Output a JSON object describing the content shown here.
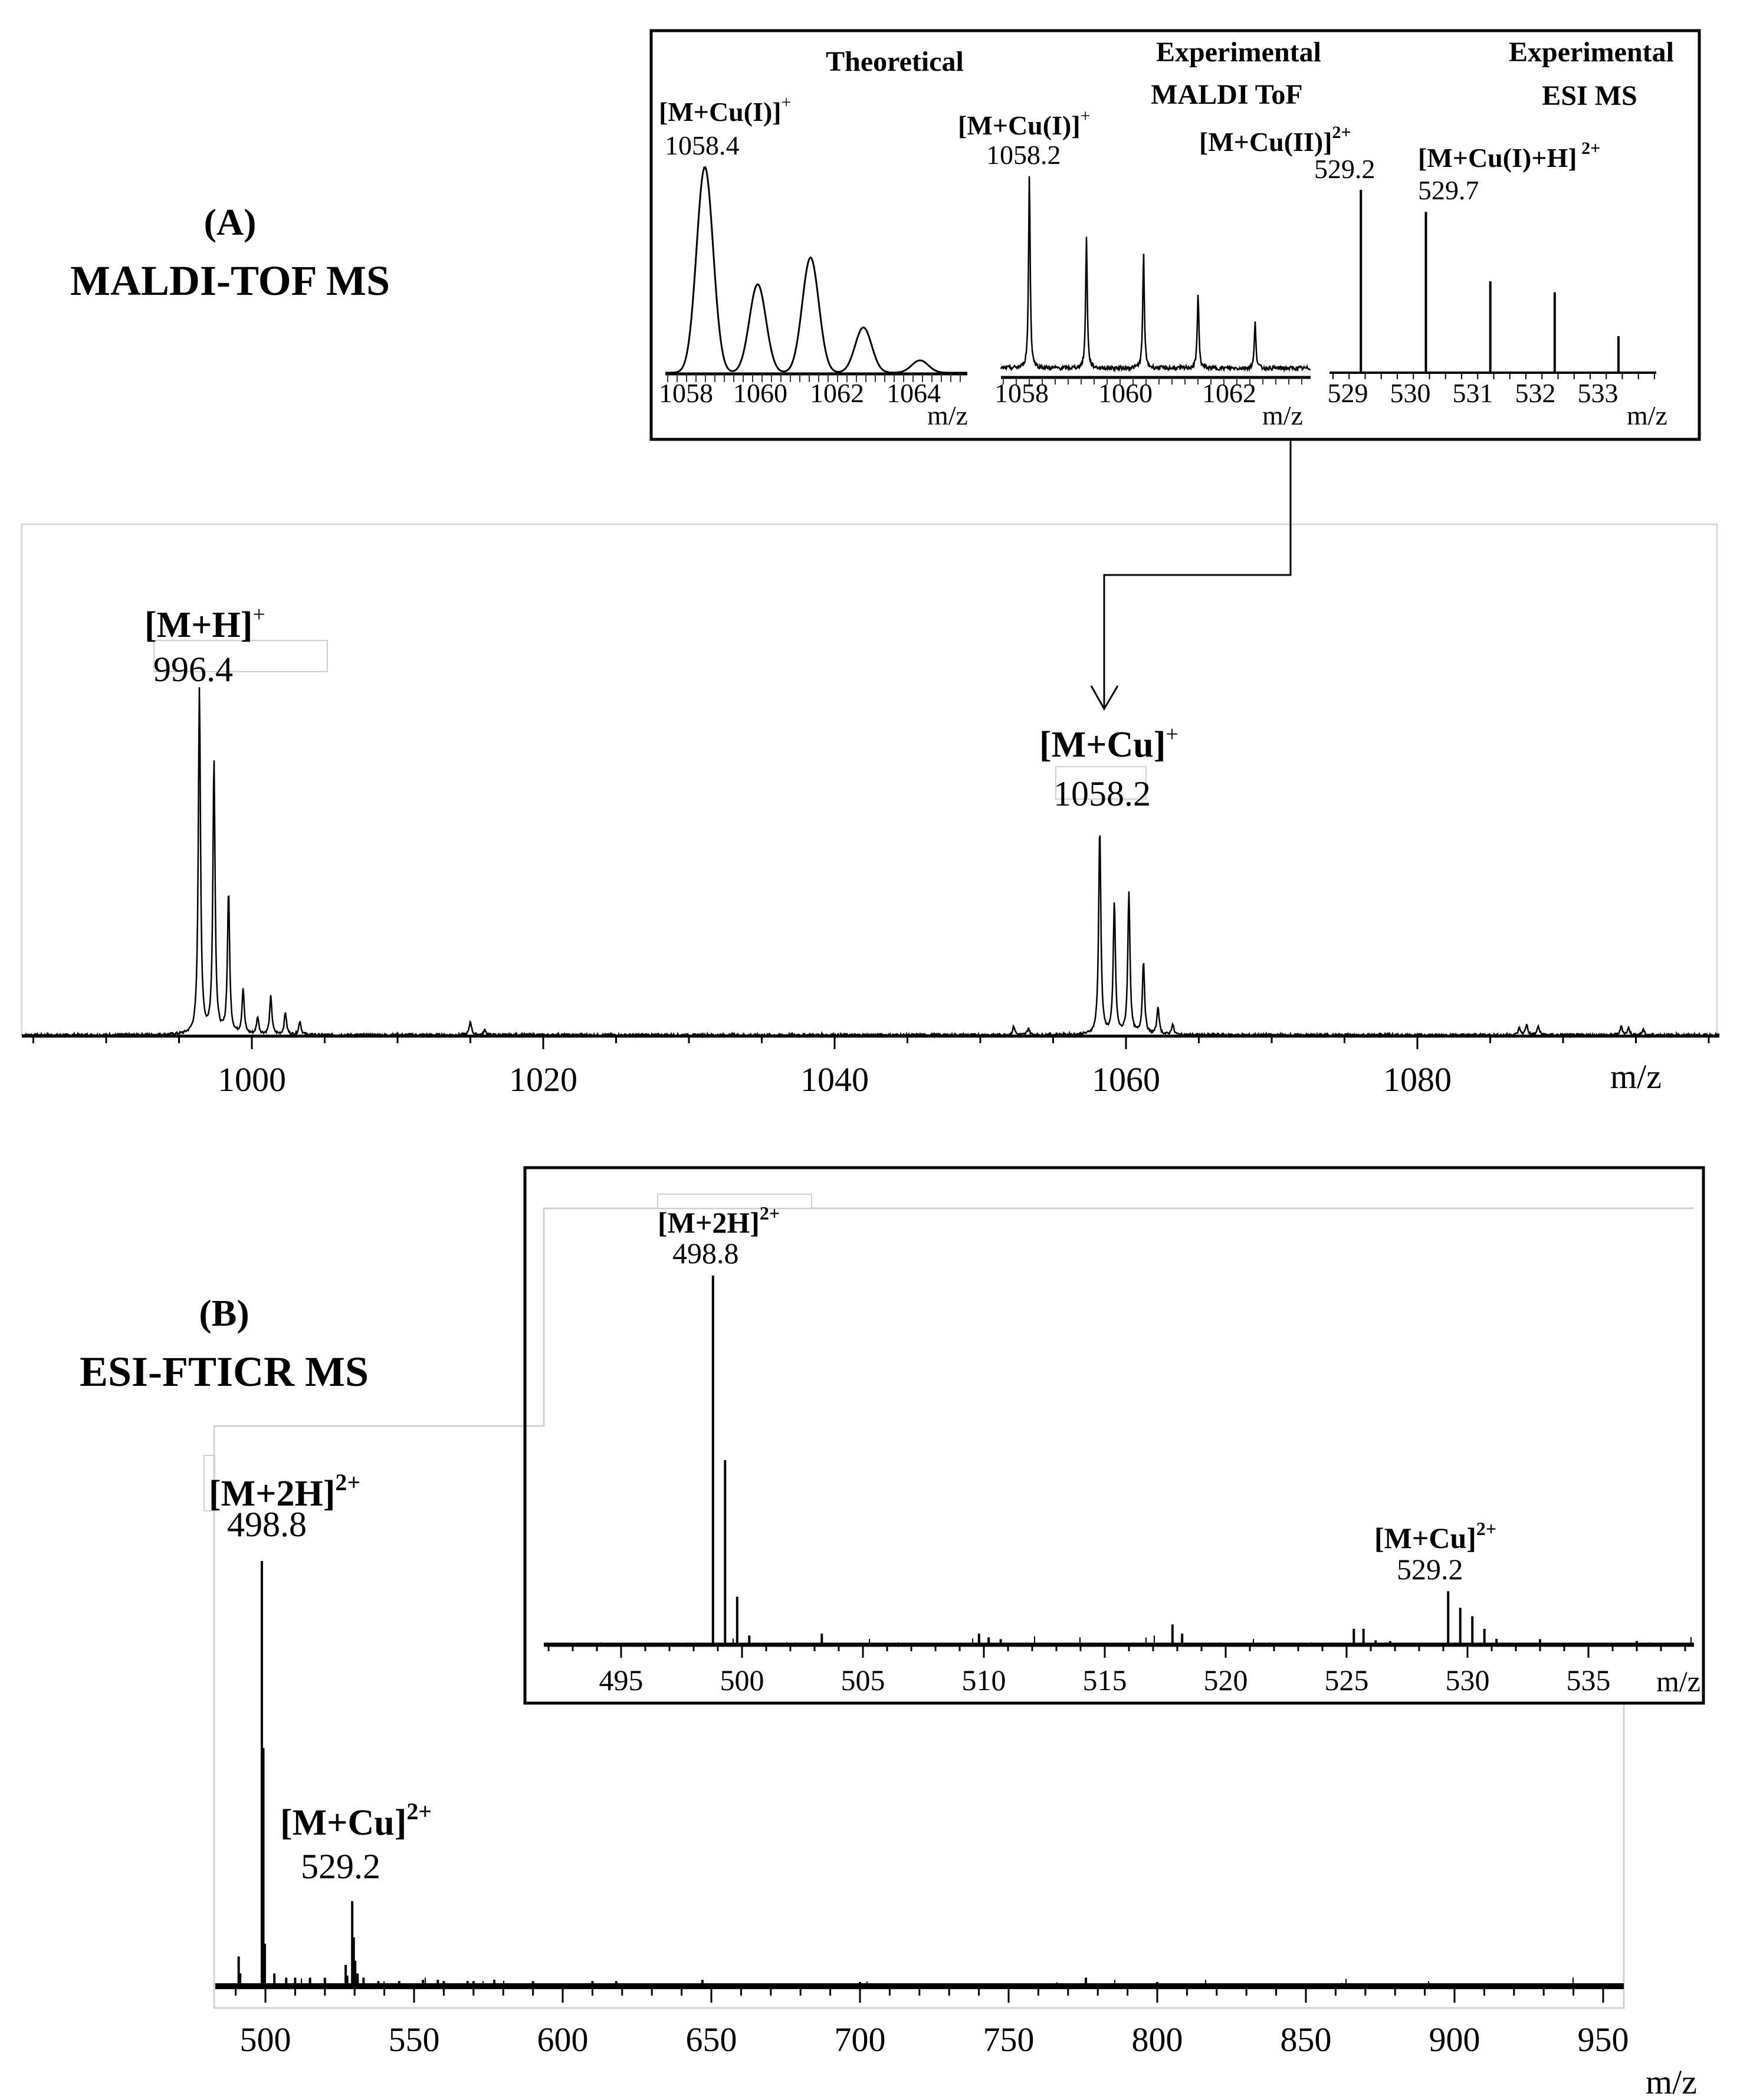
{
  "panel_a": {
    "letter": "(A)",
    "technique": "MALDI-TOF MS",
    "peak_labels": [
      {
        "ion": "[M+H]",
        "charge": "+",
        "mz": "996.4"
      },
      {
        "ion": "[M+Cu]",
        "charge": "+",
        "mz": "1058.2"
      }
    ],
    "inset": {
      "theoretical": {
        "title": "Theoretical",
        "ion": "[M+Cu(I)]",
        "charge": "+",
        "mz": "1058.4",
        "axis_label": "m/z"
      },
      "maldi": {
        "title_line1": "Experimental",
        "title_line2": "MALDI ToF",
        "ion": "[M+Cu(I)]",
        "charge": "+",
        "mz": "1058.2",
        "ion2": "[M+Cu(II)]",
        "charge2": "2+",
        "mz2": "529.2",
        "axis_label": "m/z"
      },
      "esi": {
        "title_line1": "Experimental",
        "title_line2": "ESI  MS",
        "ion": "[M+Cu(I)+H]",
        "charge": " 2+",
        "mz": "529.7",
        "axis_label": "m/z"
      }
    }
  },
  "panel_b": {
    "letter": "(B)",
    "technique": "ESI-FTICR MS",
    "peak_labels": [
      {
        "ion": "[M+2H]",
        "charge": "2+",
        "mz": "498.8"
      },
      {
        "ion": "[M+Cu]",
        "charge": "2+",
        "mz": "529.2"
      }
    ],
    "inset": {
      "peak_labels": [
        {
          "ion": "[M+2H]",
          "charge": "2+",
          "mz": "498.8"
        },
        {
          "ion": "[M+Cu]",
          "charge": "2+",
          "mz": "529.2"
        }
      ]
    }
  },
  "colors": {
    "ink": "#000000",
    "frame_gray": "#c8c8c8"
  },
  "chart_data": [
    {
      "id": "A_main",
      "type": "line",
      "title": "(A) MALDI-TOF MS",
      "xlabel": "m/z",
      "ylabel": "",
      "xlim": [
        984.4,
        1101
      ],
      "ylim": [
        0,
        1
      ],
      "xticks": [
        1000,
        1020,
        1040,
        1060,
        1080
      ],
      "minor_tick_step": 5,
      "grid": false,
      "profile": true,
      "annotations": [
        {
          "text": "[M+H]+ 996.4",
          "x": 996.4
        },
        {
          "text": "[M+Cu]+ 1058.2",
          "x": 1058.2
        }
      ],
      "x": [
        996.4,
        997.4,
        998.4,
        999.4,
        1000.4,
        1001.3,
        1002.3,
        1003.3,
        1015.0,
        1016.0,
        1052.3,
        1053.3,
        1058.2,
        1059.2,
        1060.2,
        1061.2,
        1062.2,
        1063.2,
        1087.0,
        1087.5,
        1088.3,
        1094.0,
        1094.5,
        1095.5
      ],
      "values": [
        1.0,
        0.79,
        0.41,
        0.13,
        0.05,
        0.11,
        0.065,
        0.04,
        0.04,
        0.015,
        0.025,
        0.02,
        0.6,
        0.38,
        0.41,
        0.21,
        0.08,
        0.03,
        0.02,
        0.03,
        0.025,
        0.025,
        0.02,
        0.015
      ]
    },
    {
      "id": "A_inset_theoretical",
      "type": "line",
      "title": "Theoretical",
      "xlabel": "m/z",
      "xticks": [
        1058,
        1060,
        1062,
        1064
      ],
      "profile": true,
      "gaussian": true,
      "x": [
        1058.5,
        1059.9,
        1061.3,
        1062.7,
        1064.2
      ],
      "values": [
        1.0,
        0.43,
        0.56,
        0.22,
        0.06
      ]
    },
    {
      "id": "A_inset_maldi",
      "type": "line",
      "title": "Experimental MALDI ToF",
      "xlabel": "m/z",
      "xticks": [
        1058,
        1060,
        1062
      ],
      "profile": true,
      "x": [
        1058.15,
        1059.25,
        1060.35,
        1061.4,
        1062.5
      ],
      "values": [
        1.0,
        0.68,
        0.59,
        0.39,
        0.24
      ]
    },
    {
      "id": "A_inset_esi",
      "type": "bar",
      "title": "Experimental ESI MS",
      "xlabel": "m/z",
      "xticks": [
        529,
        530,
        531,
        532,
        533
      ],
      "x": [
        529.21,
        530.25,
        531.28,
        532.31,
        533.33
      ],
      "values": [
        1.0,
        0.88,
        0.5,
        0.44,
        0.2
      ]
    },
    {
      "id": "B_main",
      "type": "bar",
      "title": "(B) ESI-FTICR MS",
      "xlabel": "m/z",
      "xlim": [
        483,
        956.5
      ],
      "ylim": [
        0,
        1
      ],
      "xticks": [
        500,
        550,
        600,
        650,
        700,
        750,
        800,
        850,
        900,
        950
      ],
      "minor_tick_step": 10,
      "annotations": [
        {
          "text": "[M+2H]2+ 498.8",
          "x": 498.8
        },
        {
          "text": "[M+Cu]2+ 529.2",
          "x": 529.2
        }
      ],
      "x": [
        491.0,
        491.5,
        498.8,
        499.3,
        499.8,
        503.0,
        507.0,
        510.0,
        515.0,
        520.0,
        527.0,
        527.5,
        529.2,
        529.7,
        530.2,
        531.0,
        533.0,
        538.0,
        545.0,
        553.0,
        558.0,
        560.0,
        568.0,
        570.0,
        577.0,
        590.0,
        610.0,
        618.0,
        647.0,
        700.0,
        776.0,
        800.0
      ],
      "values": [
        0.07,
        0.03,
        1.0,
        0.56,
        0.1,
        0.03,
        0.02,
        0.02,
        0.02,
        0.02,
        0.05,
        0.025,
        0.2,
        0.115,
        0.06,
        0.03,
        0.02,
        0.012,
        0.012,
        0.015,
        0.015,
        0.012,
        0.012,
        0.012,
        0.015,
        0.012,
        0.012,
        0.012,
        0.015,
        0.01,
        0.02,
        0.01
      ]
    },
    {
      "id": "B_inset",
      "type": "bar",
      "title": "ESI-FTICR inset",
      "xlabel": "m/z",
      "xlim": [
        492.9,
        540.4
      ],
      "xticks": [
        495,
        500,
        505,
        510,
        515,
        520,
        525,
        530,
        535
      ],
      "minor_tick_step": 1,
      "annotations": [
        {
          "text": "[M+2H]2+ 498.8",
          "x": 498.8
        },
        {
          "text": "[M+Cu]2+ 529.2",
          "x": 529.2
        }
      ],
      "x": [
        498.8,
        499.3,
        499.8,
        500.3,
        503.3,
        509.8,
        510.2,
        510.7,
        517.8,
        518.2,
        525.3,
        525.7,
        526.2,
        526.8,
        529.2,
        529.7,
        530.2,
        530.7,
        531.2,
        533.0,
        537.0
      ],
      "values": [
        1.0,
        0.5,
        0.13,
        0.025,
        0.03,
        0.03,
        0.02,
        0.015,
        0.055,
        0.03,
        0.043,
        0.043,
        0.012,
        0.01,
        0.145,
        0.1,
        0.077,
        0.043,
        0.016,
        0.015,
        0.01
      ]
    }
  ]
}
